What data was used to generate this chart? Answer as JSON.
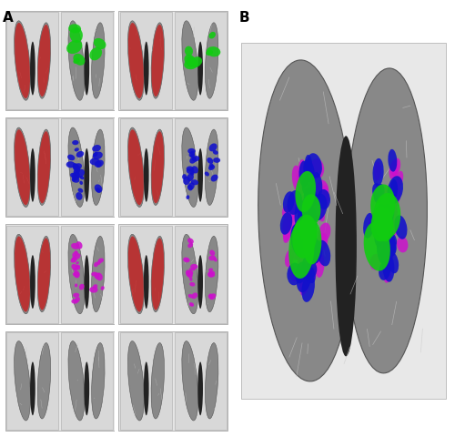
{
  "background_color": "#ffffff",
  "label_A": "A",
  "label_B": "B",
  "label_fontsize": 11,
  "label_fontweight": "bold",
  "colors": {
    "red": "#cc1111",
    "green": "#11cc11",
    "blue": "#1111cc",
    "magenta": "#cc11cc",
    "lung_gray": "#888888",
    "lung_dark": "#555555",
    "mediastinum": "#222222",
    "bg_panel": "#e0e0e0",
    "bg_fig": "#ffffff",
    "vessel": "#cccccc"
  },
  "fig_width": 5.0,
  "fig_height": 4.8,
  "dpi": 100
}
